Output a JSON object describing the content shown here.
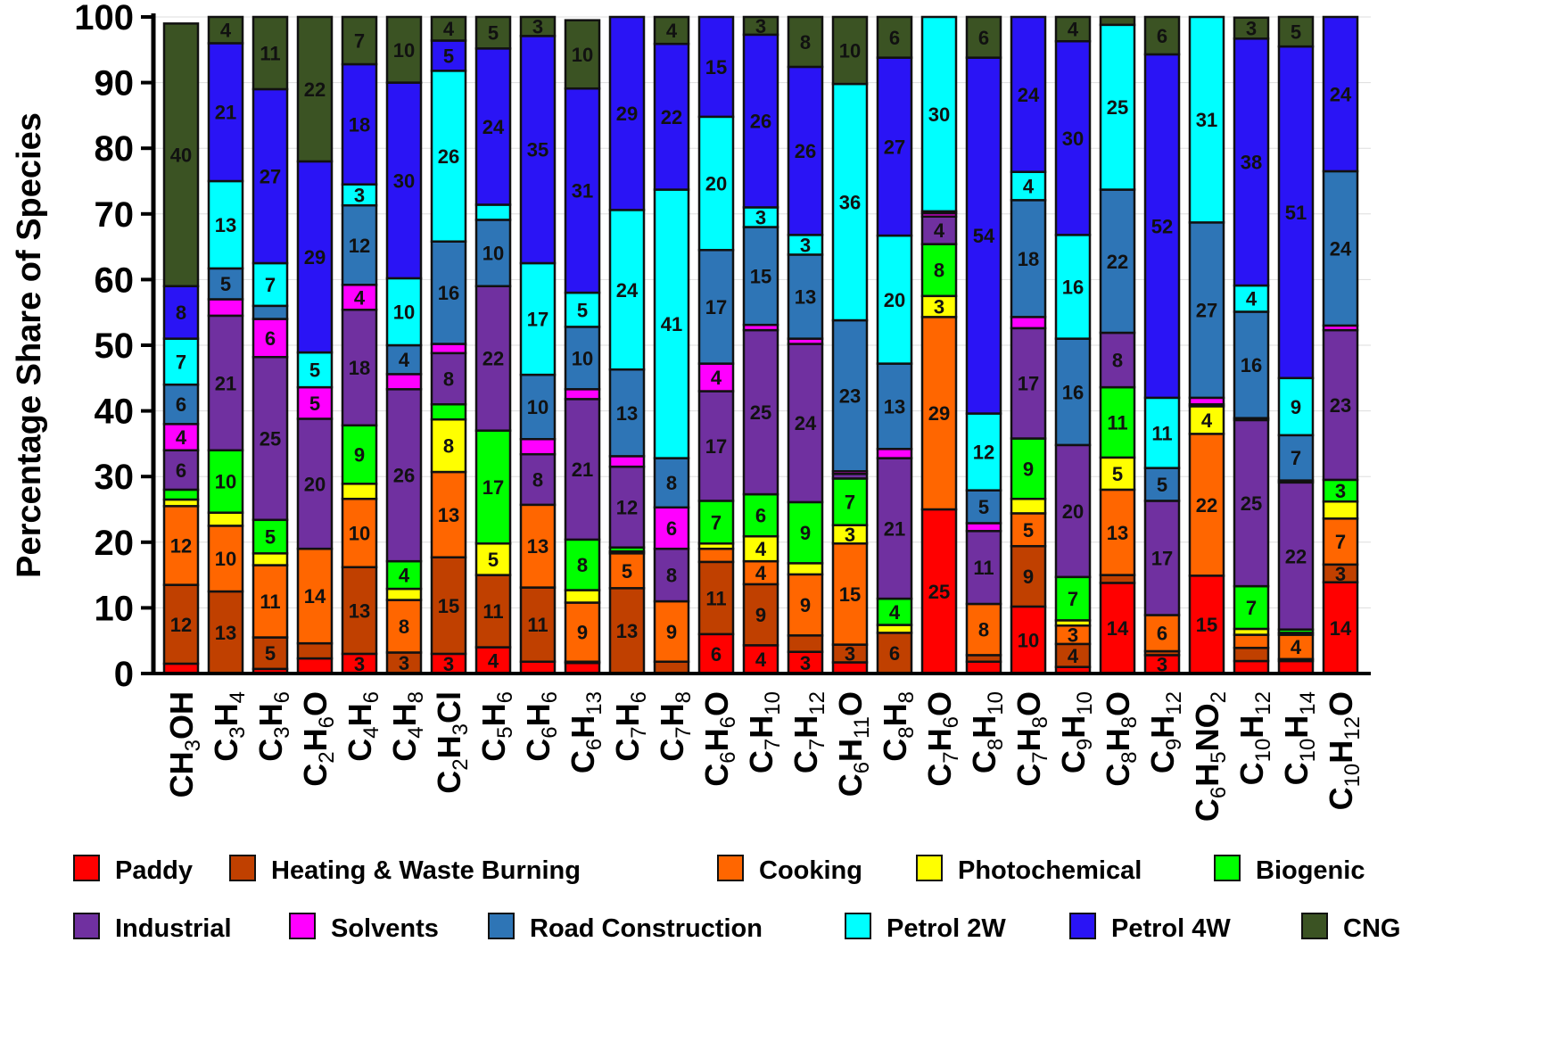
{
  "chart_data": {
    "type": "bar",
    "stacked": true,
    "title": "",
    "xlabel": "",
    "ylabel": "Percentage Share of Species",
    "ylim": [
      0,
      100
    ],
    "yticks": [
      0,
      10,
      20,
      30,
      40,
      50,
      60,
      70,
      80,
      90,
      100
    ],
    "grid": true,
    "legend_position": "bottom",
    "categories": [
      "CH3OH",
      "C3H4",
      "C3H6",
      "C2H6O",
      "C4H6",
      "C4H8",
      "C2H3Cl",
      "C5H6",
      "C6H6",
      "C6H13",
      "C7H6",
      "C7H8",
      "C6H6O",
      "C7H10",
      "C7H12",
      "C6H11O",
      "C8H8",
      "C7H6O",
      "C8H10",
      "C7H8O",
      "C9H10",
      "C8H8O",
      "C9H12",
      "C6H5NO2",
      "C10H12",
      "C10H14",
      "C10H12O"
    ],
    "series": [
      {
        "name": "Paddy",
        "color": "#ff0000",
        "values": [
          1.5,
          0,
          0.7,
          2.3,
          3,
          0,
          3,
          4,
          1.8,
          1.6,
          0,
          0,
          6,
          4.3,
          3.3,
          1.7,
          0,
          25,
          1.8,
          10.2,
          1,
          13.8,
          2.8,
          14.9,
          1.9,
          1.9,
          13.9
        ]
      },
      {
        "name": "Heating & Waste Burning",
        "color": "#c04000",
        "values": [
          12,
          12.5,
          4.8,
          2.3,
          13.2,
          3.2,
          14.7,
          11,
          11.3,
          0.2,
          13,
          1.8,
          11,
          9.3,
          2.5,
          2.7,
          6.2,
          0,
          1,
          9.2,
          3.5,
          1.2,
          0.6,
          0,
          2,
          0.3,
          2.7
        ]
      },
      {
        "name": "Cooking",
        "color": "#ff6600",
        "values": [
          12,
          10,
          11,
          14.4,
          10.4,
          8,
          13,
          0,
          12.6,
          9,
          5.3,
          9.2,
          2,
          3.5,
          9.3,
          15.4,
          0,
          29.3,
          7.8,
          5,
          2.8,
          13,
          5.5,
          21.6,
          2,
          3.7,
          7
        ]
      },
      {
        "name": "Photochemical",
        "color": "#ffff00",
        "values": [
          1,
          2,
          1.8,
          0,
          2.3,
          1.7,
          8,
          4.8,
          0,
          1.9,
          0.3,
          0,
          0.8,
          3.8,
          1.7,
          2.8,
          1.2,
          3.2,
          0,
          2.2,
          0.8,
          4.9,
          0,
          4.2,
          0.9,
          0.3,
          2.6
        ]
      },
      {
        "name": "Biogenic",
        "color": "#00ff00",
        "values": [
          1.5,
          9.5,
          5.1,
          0,
          8.9,
          4.2,
          2.3,
          17.2,
          0,
          7.7,
          0.6,
          0,
          6.5,
          6.4,
          9.3,
          7.1,
          4,
          7.9,
          0,
          9.2,
          6.6,
          10.7,
          0,
          0,
          6.5,
          0.5,
          3.3
        ]
      },
      {
        "name": "Industrial",
        "color": "#7030a0",
        "values": [
          6,
          20.5,
          24.8,
          19.8,
          17.6,
          26.2,
          7.8,
          22,
          7.7,
          21.4,
          12.3,
          8,
          16.7,
          25,
          24.1,
          0.7,
          21.4,
          4.2,
          11.1,
          16.8,
          20.1,
          8.3,
          17.4,
          0.3,
          25.3,
          22.4,
          22.8
        ]
      },
      {
        "name": "Solvents",
        "color": "#ff00ff",
        "values": [
          4,
          2.5,
          5.8,
          4.8,
          3.8,
          2.3,
          1.4,
          0,
          2.3,
          1.5,
          1.6,
          6.3,
          4.2,
          0.8,
          0.8,
          0.4,
          1.4,
          0.5,
          1.2,
          1.7,
          0,
          0,
          0,
          1,
          0.3,
          0.3,
          0.7
        ]
      },
      {
        "name": "Road Construction",
        "color": "#2e75b6",
        "values": [
          6,
          4.7,
          2,
          0,
          12.1,
          4.4,
          15.6,
          10.1,
          9.8,
          9.5,
          13.2,
          7.5,
          17.3,
          14.9,
          12.8,
          23,
          13,
          0.3,
          5,
          17.8,
          16.2,
          21.8,
          5,
          26.7,
          16.2,
          6.9,
          23.5
        ]
      },
      {
        "name": "Petrol 2W",
        "color": "#00ffff",
        "values": [
          7,
          13.3,
          6.5,
          5.3,
          3.2,
          10.2,
          26,
          2.3,
          17,
          5.2,
          24.3,
          40.9,
          20.3,
          3,
          3,
          36,
          19.5,
          29.6,
          11.7,
          4.3,
          15.8,
          25.1,
          10.7,
          31.3,
          4,
          8.7,
          0
        ]
      },
      {
        "name": "Petrol 4W",
        "color": "#2a14f5",
        "values": [
          8,
          21,
          26.5,
          29.1,
          18.3,
          29.8,
          4.6,
          23.8,
          34.6,
          31.1,
          29.4,
          22.2,
          15.2,
          26.3,
          25.6,
          0,
          27.1,
          0,
          54.2,
          23.6,
          29.5,
          0,
          52.3,
          0,
          37.6,
          50.5,
          23.5
        ]
      },
      {
        "name": "CNG",
        "color": "#3b5323",
        "values": [
          40,
          4,
          11,
          22,
          7.2,
          10,
          3.6,
          4.8,
          2.9,
          10.4,
          0,
          4.1,
          0,
          2.7,
          7.6,
          10.2,
          6.2,
          0,
          6.2,
          0,
          3.7,
          1.2,
          5.7,
          0,
          3.2,
          4.5,
          0
        ]
      }
    ]
  }
}
